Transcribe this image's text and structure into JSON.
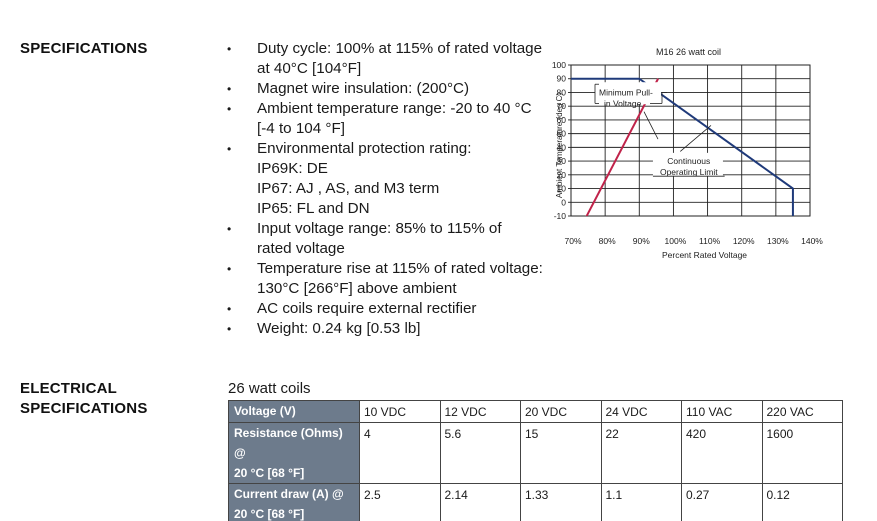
{
  "specifications": {
    "heading": "SPECIFICATIONS",
    "items": [
      {
        "lines": [
          "Duty cycle: 100% at 115% of rated voltage",
          "at 40°C [104°F]"
        ]
      },
      {
        "lines": [
          "Magnet wire insulation:  (200°C)"
        ]
      },
      {
        "lines": [
          "Ambient temperature range: -20 to 40 °C",
          "[-4 to 104 °F]"
        ]
      },
      {
        "lines": [
          "Environmental protection rating:",
          "IP69K: DE",
          "IP67: AJ , AS, and M3 term",
          "IP65: FL and DN"
        ]
      },
      {
        "lines": [
          "Input voltage range:  85% to 115% of",
          "rated voltage"
        ]
      },
      {
        "lines": [
          "Temperature rise at 115% of rated voltage:",
          "130°C [266°F] above ambient"
        ]
      },
      {
        "lines": [
          "AC coils require external rectifier"
        ]
      },
      {
        "lines": [
          "Weight:  0.24 kg [0.53 lb]"
        ]
      }
    ]
  },
  "electrical": {
    "heading_line1": "ELECTRICAL",
    "heading_line2": "SPECIFICATIONS",
    "caption": "26 watt coils",
    "rows": [
      {
        "header": "Voltage (V)",
        "cells": [
          "10 VDC",
          "12 VDC",
          "20 VDC",
          "24 VDC",
          "110 VAC",
          "220 VAC"
        ]
      },
      {
        "header_line1": "Resistance (Ohms) @",
        "header_line2": "20 °C [68 °F]",
        "cells": [
          "4",
          "5.6",
          "15",
          "22",
          "420",
          "1600"
        ]
      },
      {
        "header_line1": "Current draw (A) @",
        "header_line2": "20 °C [68 °F]",
        "cells": [
          "2.5",
          "2.14",
          "1.33",
          "1.1",
          "0.27",
          "0.12"
        ]
      }
    ]
  },
  "chart_data": {
    "type": "line",
    "title": "M16 26 watt coil",
    "xlabel": "Percent Rated Voltage",
    "ylabel": "Ambient Temperature (deg C)",
    "xlim": [
      70,
      140
    ],
    "ylim": [
      -10,
      100
    ],
    "x_ticks": [
      70,
      80,
      90,
      100,
      110,
      120,
      130,
      140
    ],
    "x_tick_labels": [
      "70%",
      "80%",
      "90%",
      "100%",
      "110%",
      "120%",
      "130%",
      "140%"
    ],
    "y_ticks": [
      -10,
      0,
      10,
      20,
      30,
      40,
      50,
      60,
      70,
      80,
      90,
      100
    ],
    "y_tick_labels": [
      "-10",
      "0",
      "10",
      "20",
      "30",
      "40",
      "50",
      "60",
      "70",
      "80",
      "90",
      "100"
    ],
    "grid": true,
    "series": [
      {
        "color": "#c0234a",
        "x": [
          72.5,
          95.5
        ],
        "y": [
          -20,
          90
        ]
      },
      {
        "color": "#1f3a7a",
        "x": [
          70,
          90,
          135,
          135
        ],
        "y": [
          90,
          90,
          10,
          -20
        ]
      }
    ],
    "annotations": [
      {
        "lines": [
          "Minimum Pull-",
          "in Voltage"
        ]
      },
      {
        "lines": [
          "Continuous",
          "Operating Limit"
        ]
      }
    ]
  }
}
